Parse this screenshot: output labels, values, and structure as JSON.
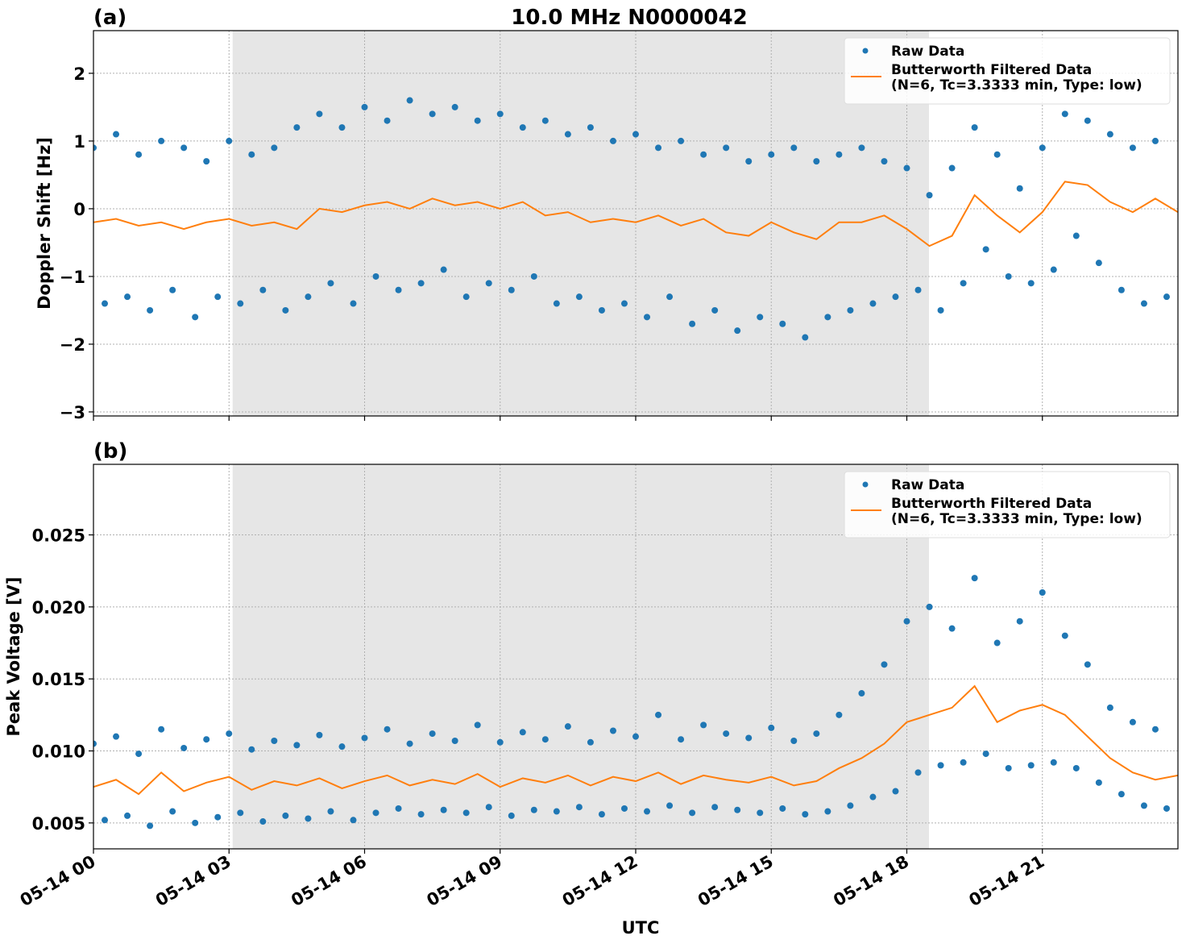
{
  "chart_data": [
    {
      "type": "line",
      "label": "(a)",
      "title": "10.0 MHz N0000042",
      "ylabel": "Doppler Shift [Hz]",
      "xlim": [
        0,
        24
      ],
      "xticks": [
        0,
        3,
        6,
        9,
        12,
        15,
        18,
        21
      ],
      "ylim": [
        -3.06,
        2.63
      ],
      "yticks": [
        {
          "value": 2,
          "label": "2"
        },
        {
          "value": 1,
          "label": "1"
        },
        0,
        {
          "value": -1,
          "label": "−1"
        },
        {
          "value": -2,
          "label": "−2"
        },
        {
          "value": -3,
          "label": "−3"
        }
      ],
      "grid": true,
      "legend": "upper right",
      "shaded_span": [
        3.08,
        18.49
      ],
      "shaded_color": "#e6e6e6",
      "series": [
        {
          "name": "Raw Data",
          "type": "scatter",
          "color": "#1f77b4",
          "x": [
            0,
            0.25,
            0.5,
            0.75,
            1,
            1.25,
            1.5,
            1.75,
            2,
            2.25,
            2.5,
            2.75,
            3,
            3.25,
            3.5,
            3.75,
            4,
            4.25,
            4.5,
            4.75,
            5,
            5.25,
            5.5,
            5.75,
            6,
            6.25,
            6.5,
            6.75,
            7,
            7.25,
            7.5,
            7.75,
            8,
            8.25,
            8.5,
            8.75,
            9,
            9.25,
            9.5,
            9.75,
            10,
            10.25,
            10.5,
            10.75,
            11,
            11.25,
            11.5,
            11.75,
            12,
            12.25,
            12.5,
            12.75,
            13,
            13.25,
            13.5,
            13.75,
            14,
            14.25,
            14.5,
            14.75,
            15,
            15.25,
            15.5,
            15.75,
            16,
            16.25,
            16.5,
            16.75,
            17,
            17.25,
            17.5,
            17.75,
            18,
            18.25,
            18.5,
            18.75,
            19,
            19.25,
            19.5,
            19.75,
            20,
            20.25,
            20.5,
            20.75,
            21,
            21.25,
            21.5,
            21.75,
            22,
            22.25,
            22.5,
            22.75,
            23,
            23.25,
            23.5,
            23.75
          ],
          "values": [
            0.9,
            -1.4,
            1.1,
            -1.3,
            0.8,
            -1.5,
            1.0,
            -1.2,
            0.9,
            -1.6,
            0.7,
            -1.3,
            1.0,
            -1.4,
            0.8,
            -1.2,
            0.9,
            -1.5,
            1.2,
            -1.3,
            1.4,
            -1.1,
            1.2,
            -1.4,
            1.5,
            -1.0,
            1.3,
            -1.2,
            1.6,
            -1.1,
            1.4,
            -0.9,
            1.5,
            -1.3,
            1.3,
            -1.1,
            1.4,
            -1.2,
            1.2,
            -1.0,
            1.3,
            -1.4,
            1.1,
            -1.3,
            1.2,
            -1.5,
            1.0,
            -1.4,
            1.1,
            -1.6,
            0.9,
            -1.3,
            1.0,
            -1.7,
            0.8,
            -1.5,
            0.9,
            -1.8,
            0.7,
            -1.6,
            0.8,
            -1.7,
            0.9,
            -1.9,
            0.7,
            -1.6,
            0.8,
            -1.5,
            0.9,
            -1.4,
            0.7,
            -1.3,
            0.6,
            -1.2,
            0.2,
            -1.5,
            0.6,
            -1.1,
            1.2,
            -0.6,
            0.8,
            -1.0,
            0.3,
            -1.1,
            0.9,
            -0.9,
            1.4,
            -0.4,
            1.3,
            -0.8,
            1.1,
            -1.2,
            0.9,
            -1.4,
            1.0,
            -1.3
          ]
        },
        {
          "name": [
            "Butterworth Filtered Data",
            "(N=6, Tc=3.3333 min, Type: low)"
          ],
          "type": "line",
          "color": "#ff7f0e",
          "x": [
            0,
            0.5,
            1,
            1.5,
            2,
            2.5,
            3,
            3.5,
            4,
            4.5,
            5,
            5.5,
            6,
            6.5,
            7,
            7.5,
            8,
            8.5,
            9,
            9.5,
            10,
            10.5,
            11,
            11.5,
            12,
            12.5,
            13,
            13.5,
            14,
            14.5,
            15,
            15.5,
            16,
            16.5,
            17,
            17.5,
            18,
            18.5,
            19,
            19.5,
            20,
            20.5,
            21,
            21.5,
            22,
            22.5,
            23,
            23.5,
            24
          ],
          "values": [
            -0.2,
            -0.15,
            -0.25,
            -0.2,
            -0.3,
            -0.2,
            -0.15,
            -0.25,
            -0.2,
            -0.3,
            0.0,
            -0.05,
            0.05,
            0.1,
            0.0,
            0.15,
            0.05,
            0.1,
            0.0,
            0.1,
            -0.1,
            -0.05,
            -0.2,
            -0.15,
            -0.2,
            -0.1,
            -0.25,
            -0.15,
            -0.35,
            -0.4,
            -0.2,
            -0.35,
            -0.45,
            -0.2,
            -0.2,
            -0.1,
            -0.3,
            -0.55,
            -0.4,
            0.2,
            -0.1,
            -0.35,
            -0.05,
            0.4,
            0.35,
            0.1,
            -0.05,
            0.15,
            -0.05
          ]
        }
      ]
    },
    {
      "type": "line",
      "label": "(b)",
      "ylabel": "Peak Voltage [V]",
      "xlabel": "UTC",
      "xlim": [
        0,
        24
      ],
      "xticks": [
        {
          "value": 0,
          "label": "05-14 00"
        },
        {
          "value": 3,
          "label": "05-14 03"
        },
        {
          "value": 6,
          "label": "05-14 06"
        },
        {
          "value": 9,
          "label": "05-14 09"
        },
        {
          "value": 12,
          "label": "05-14 12"
        },
        {
          "value": 15,
          "label": "05-14 15"
        },
        {
          "value": 18,
          "label": "05-14 18"
        },
        {
          "value": 21,
          "label": "05-14 21"
        }
      ],
      "ylim": [
        0.0032,
        0.0299
      ],
      "yticks": [
        0.005,
        {
          "value": 0.01,
          "label": "0.010"
        },
        0.015,
        {
          "value": 0.02,
          "label": "0.020"
        },
        0.025
      ],
      "grid": true,
      "legend": "upper right",
      "shaded_span": [
        3.08,
        18.49
      ],
      "shaded_color": "#e6e6e6",
      "series": [
        {
          "name": "Raw Data",
          "type": "scatter",
          "color": "#1f77b4",
          "x": [
            0,
            0.25,
            0.5,
            0.75,
            1,
            1.25,
            1.5,
            1.75,
            2,
            2.25,
            2.5,
            2.75,
            3,
            3.25,
            3.5,
            3.75,
            4,
            4.25,
            4.5,
            4.75,
            5,
            5.25,
            5.5,
            5.75,
            6,
            6.25,
            6.5,
            6.75,
            7,
            7.25,
            7.5,
            7.75,
            8,
            8.25,
            8.5,
            8.75,
            9,
            9.25,
            9.5,
            9.75,
            10,
            10.25,
            10.5,
            10.75,
            11,
            11.25,
            11.5,
            11.75,
            12,
            12.25,
            12.5,
            12.75,
            13,
            13.25,
            13.5,
            13.75,
            14,
            14.25,
            14.5,
            14.75,
            15,
            15.25,
            15.5,
            15.75,
            16,
            16.25,
            16.5,
            16.75,
            17,
            17.25,
            17.5,
            17.75,
            18,
            18.25,
            18.5,
            18.75,
            19,
            19.25,
            19.5,
            19.75,
            20,
            20.25,
            20.5,
            20.75,
            21,
            21.25,
            21.5,
            21.75,
            22,
            22.25,
            22.5,
            22.75,
            23,
            23.25,
            23.5,
            23.75
          ],
          "values": [
            0.0105,
            0.0052,
            0.011,
            0.0055,
            0.0098,
            0.0048,
            0.0115,
            0.0058,
            0.0102,
            0.005,
            0.0108,
            0.0054,
            0.0112,
            0.0057,
            0.0101,
            0.0051,
            0.0107,
            0.0055,
            0.0104,
            0.0053,
            0.0111,
            0.0058,
            0.0103,
            0.0052,
            0.0109,
            0.0057,
            0.0115,
            0.006,
            0.0105,
            0.0056,
            0.0112,
            0.0059,
            0.0107,
            0.0057,
            0.0118,
            0.0061,
            0.0106,
            0.0055,
            0.0113,
            0.0059,
            0.0108,
            0.0058,
            0.0117,
            0.0061,
            0.0106,
            0.0056,
            0.0114,
            0.006,
            0.011,
            0.0058,
            0.0125,
            0.0062,
            0.0108,
            0.0057,
            0.0118,
            0.0061,
            0.0112,
            0.0059,
            0.0109,
            0.0057,
            0.0116,
            0.006,
            0.0107,
            0.0056,
            0.0112,
            0.0058,
            0.0125,
            0.0062,
            0.014,
            0.0068,
            0.016,
            0.0072,
            0.019,
            0.0085,
            0.02,
            0.009,
            0.0185,
            0.0092,
            0.022,
            0.0098,
            0.0175,
            0.0088,
            0.019,
            0.009,
            0.021,
            0.0092,
            0.018,
            0.0088,
            0.016,
            0.0078,
            0.013,
            0.007,
            0.012,
            0.0062,
            0.0115,
            0.006
          ]
        },
        {
          "name": [
            "Butterworth Filtered Data",
            "(N=6, Tc=3.3333 min, Type: low)"
          ],
          "type": "line",
          "color": "#ff7f0e",
          "x": [
            0,
            0.5,
            1,
            1.5,
            2,
            2.5,
            3,
            3.5,
            4,
            4.5,
            5,
            5.5,
            6,
            6.5,
            7,
            7.5,
            8,
            8.5,
            9,
            9.5,
            10,
            10.5,
            11,
            11.5,
            12,
            12.5,
            13,
            13.5,
            14,
            14.5,
            15,
            15.5,
            16,
            16.5,
            17,
            17.5,
            18,
            18.5,
            19,
            19.5,
            20,
            20.5,
            21,
            21.5,
            22,
            22.5,
            23,
            23.5,
            24
          ],
          "values": [
            0.0075,
            0.008,
            0.007,
            0.0085,
            0.0072,
            0.0078,
            0.0082,
            0.0073,
            0.0079,
            0.0076,
            0.0081,
            0.0074,
            0.0079,
            0.0083,
            0.0076,
            0.008,
            0.0077,
            0.0084,
            0.0075,
            0.0081,
            0.0078,
            0.0083,
            0.0076,
            0.0082,
            0.0079,
            0.0085,
            0.0077,
            0.0083,
            0.008,
            0.0078,
            0.0082,
            0.0076,
            0.0079,
            0.0088,
            0.0095,
            0.0105,
            0.012,
            0.0125,
            0.013,
            0.0145,
            0.012,
            0.0128,
            0.0132,
            0.0125,
            0.011,
            0.0095,
            0.0085,
            0.008,
            0.0083
          ]
        }
      ]
    }
  ]
}
